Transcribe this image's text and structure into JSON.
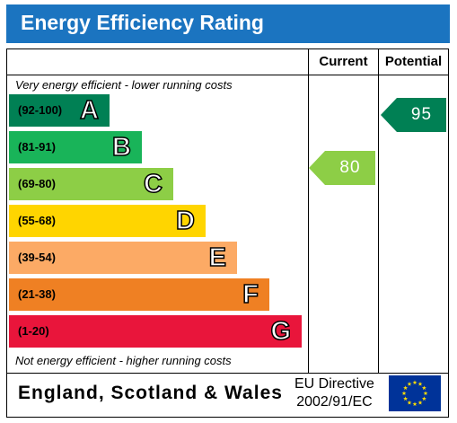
{
  "title": "Energy Efficiency Rating",
  "columns": {
    "current": "Current",
    "potential": "Potential"
  },
  "captions": {
    "top": "Very energy efficient - lower running costs",
    "bottom": "Not energy efficient - higher running costs"
  },
  "bands": [
    {
      "range": "(92-100)",
      "letter": "A",
      "color": "#008054"
    },
    {
      "range": "(81-91)",
      "letter": "B",
      "color": "#19b459"
    },
    {
      "range": "(69-80)",
      "letter": "C",
      "color": "#8dce46"
    },
    {
      "range": "(55-68)",
      "letter": "D",
      "color": "#ffd500"
    },
    {
      "range": "(39-54)",
      "letter": "E",
      "color": "#fcaa65"
    },
    {
      "range": "(21-38)",
      "letter": "F",
      "color": "#ef8023"
    },
    {
      "range": "(1-20)",
      "letter": "G",
      "color": "#e9153b"
    }
  ],
  "ratings": {
    "current": {
      "value": "80",
      "color": "#8dce46"
    },
    "potential": {
      "value": "95",
      "color": "#008054"
    }
  },
  "footer": {
    "country": "England, Scotland & Wales",
    "directive_line1": "EU Directive",
    "directive_line2": "2002/91/EC"
  },
  "colors": {
    "title_bar": "#1b74c0",
    "eu_flag": "#003399",
    "eu_stars": "#ffdd00"
  }
}
